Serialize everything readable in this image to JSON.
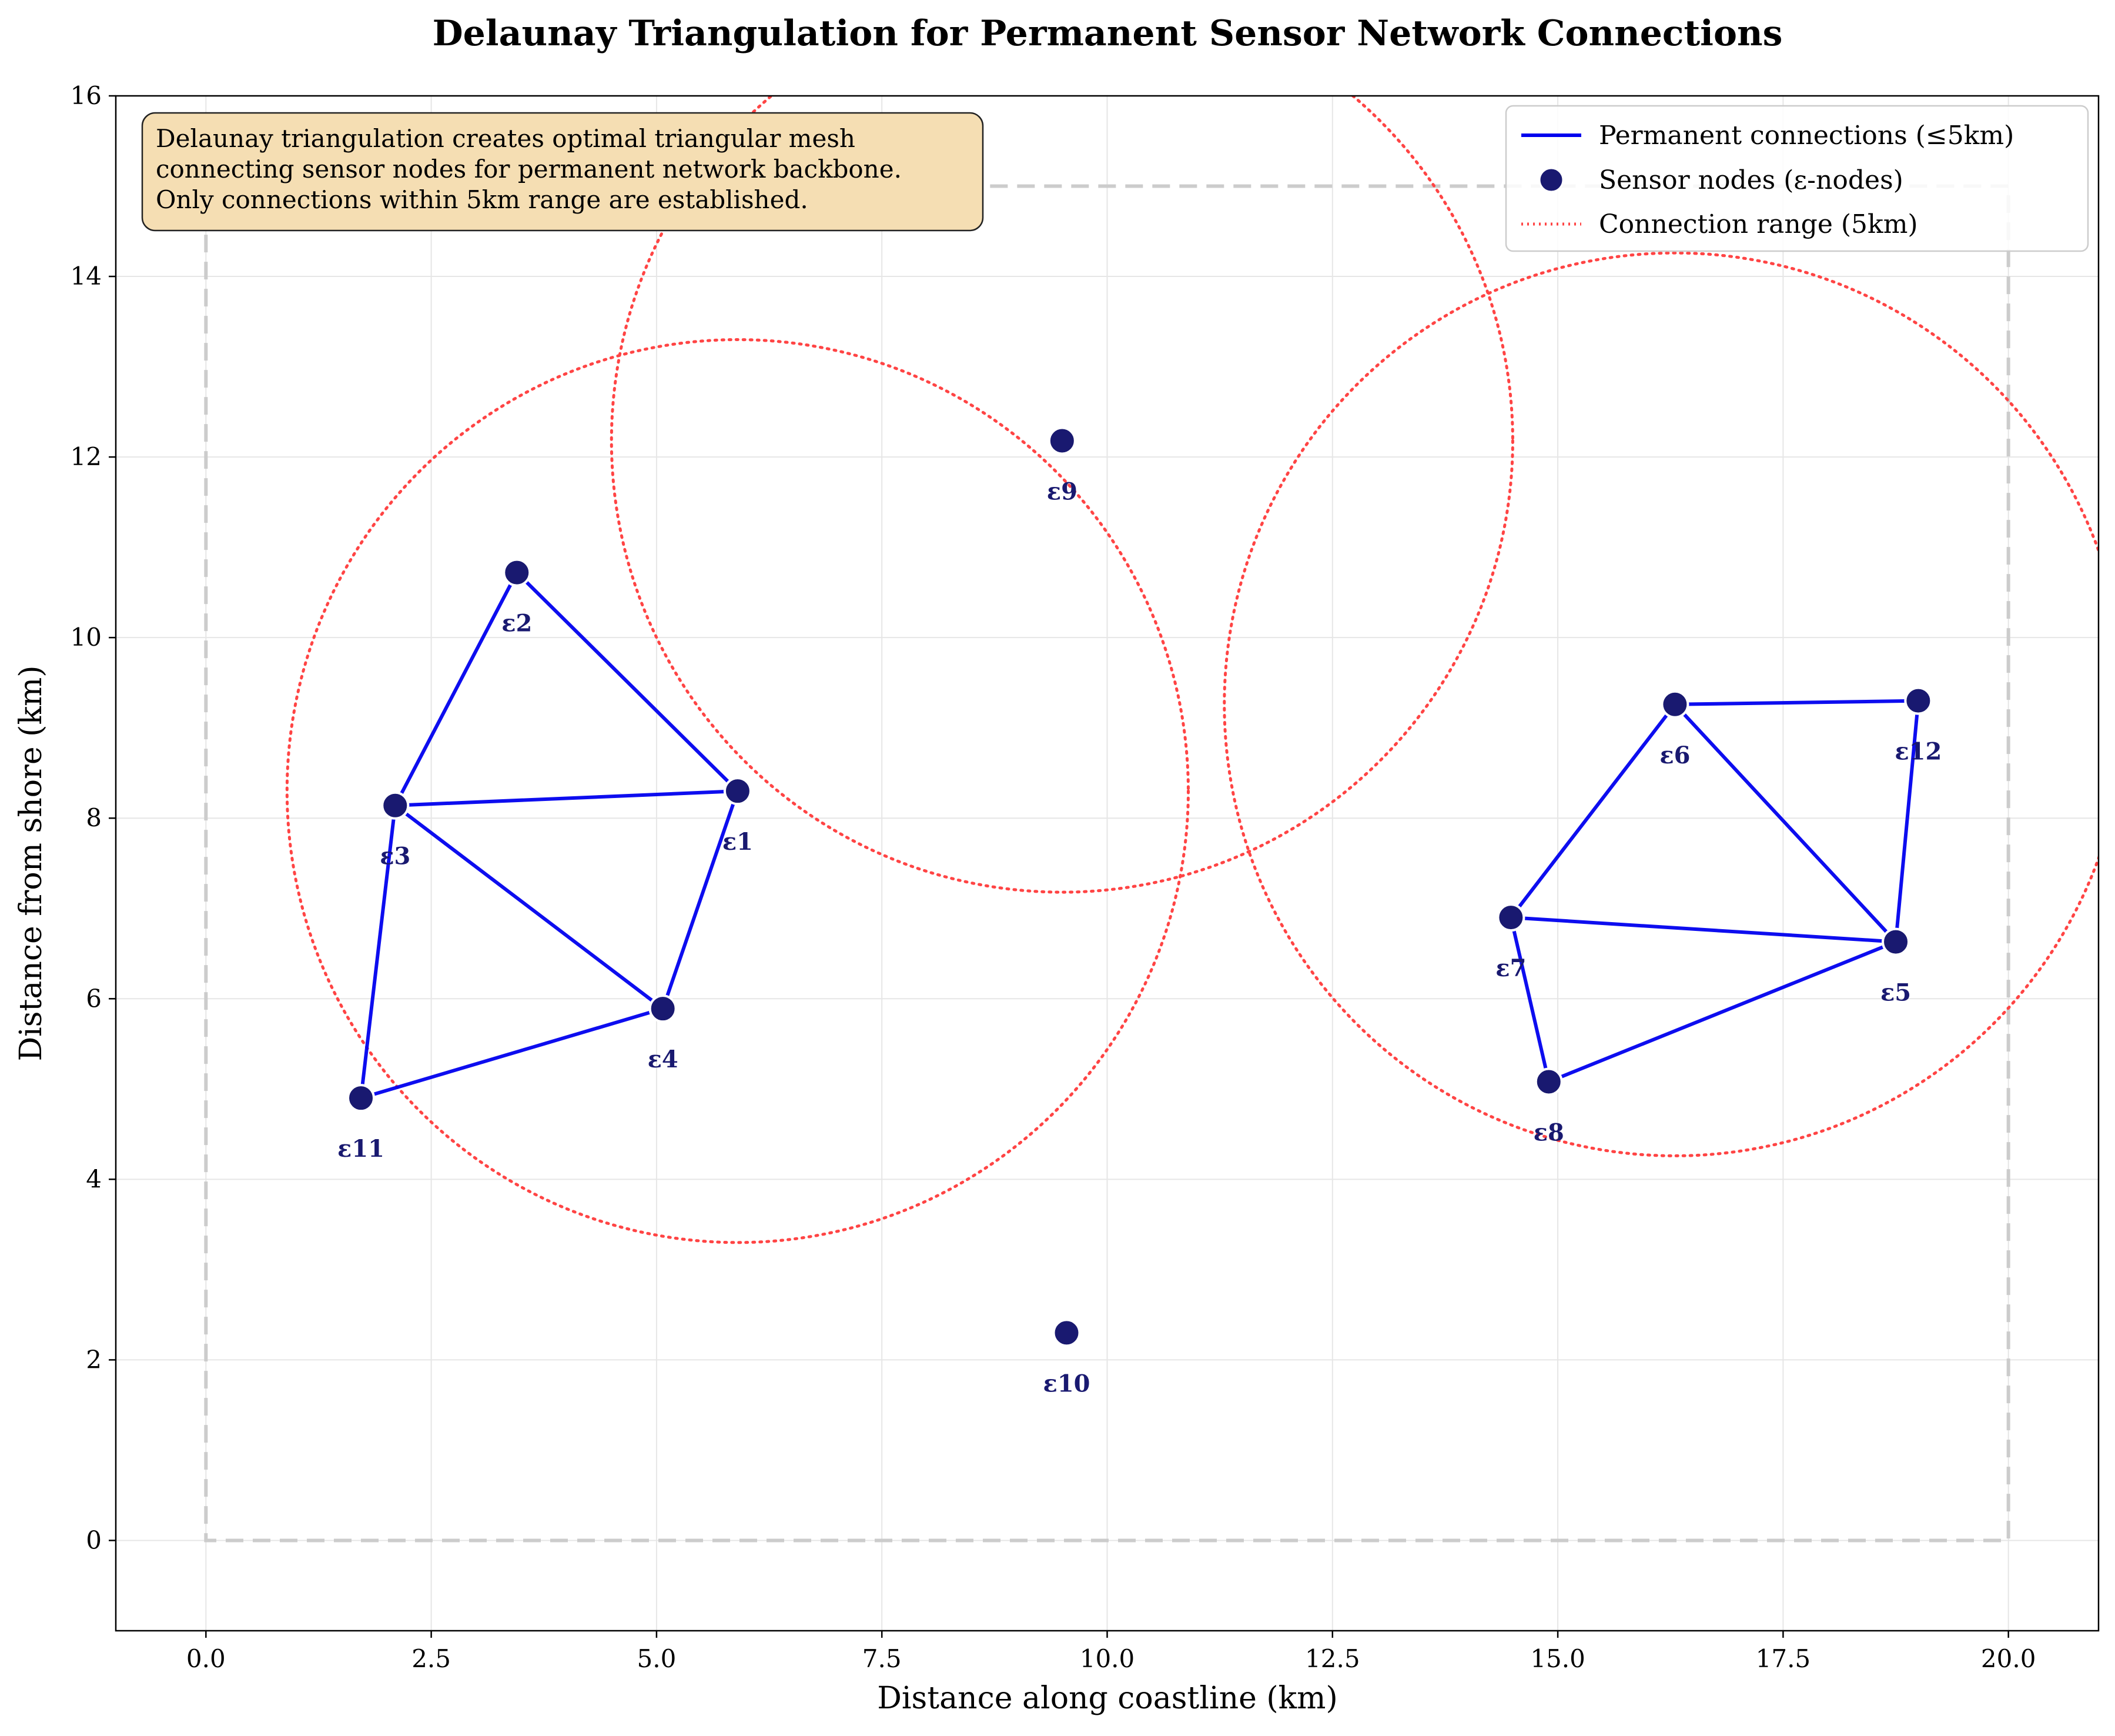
{
  "chart_data": {
    "type": "scatter",
    "title": "Delaunay Triangulation for Permanent Sensor Network Connections",
    "xlabel": "Distance along coastline (km)",
    "ylabel": "Distance from shore (km)",
    "xlim": [
      -1,
      21
    ],
    "ylim": [
      -1,
      16
    ],
    "x_ticks": [
      0,
      2.5,
      5,
      7.5,
      10,
      12.5,
      15,
      17.5,
      20
    ],
    "x_tick_labels": [
      "0.0",
      "2.5",
      "5.0",
      "7.5",
      "10.0",
      "12.5",
      "15.0",
      "17.5",
      "20.0"
    ],
    "y_ticks": [
      0,
      2,
      4,
      6,
      8,
      10,
      12,
      14,
      16
    ],
    "y_tick_labels": [
      "0",
      "2",
      "4",
      "6",
      "8",
      "10",
      "12",
      "14",
      "16"
    ],
    "grid": true,
    "legend_position": "top-right",
    "legend": [
      {
        "label": "Permanent connections (≤5km)",
        "style": "line",
        "color": "#0000ee"
      },
      {
        "label": "Sensor nodes (ε-nodes)",
        "style": "marker",
        "color": "#191970"
      },
      {
        "label": "Connection range (5km)",
        "style": "dotted",
        "color": "#ff4444"
      }
    ],
    "annotation": {
      "lines": [
        "Delaunay triangulation creates optimal triangular mesh",
        "connecting sensor nodes for permanent network backbone.",
        "Only connections within 5km range are established."
      ],
      "position": "top-left",
      "box_color": "#f5deb3"
    },
    "boundary": {
      "x": [
        0,
        20
      ],
      "y": [
        0,
        15
      ],
      "color": "#cccccc",
      "style": "dashed"
    },
    "nodes": [
      {
        "id": "ε1",
        "x": 5.9,
        "y": 8.3
      },
      {
        "id": "ε2",
        "x": 3.45,
        "y": 10.72
      },
      {
        "id": "ε3",
        "x": 2.1,
        "y": 8.14
      },
      {
        "id": "ε4",
        "x": 5.07,
        "y": 5.89
      },
      {
        "id": "ε5",
        "x": 18.75,
        "y": 6.63
      },
      {
        "id": "ε6",
        "x": 16.3,
        "y": 9.26
      },
      {
        "id": "ε7",
        "x": 14.48,
        "y": 6.9
      },
      {
        "id": "ε8",
        "x": 14.9,
        "y": 5.08
      },
      {
        "id": "ε9",
        "x": 9.5,
        "y": 12.18
      },
      {
        "id": "ε10",
        "x": 9.55,
        "y": 2.3
      },
      {
        "id": "ε11",
        "x": 1.72,
        "y": 4.9
      },
      {
        "id": "ε12",
        "x": 19.0,
        "y": 9.3
      }
    ],
    "edges": [
      [
        "ε2",
        "ε1"
      ],
      [
        "ε2",
        "ε3"
      ],
      [
        "ε3",
        "ε1"
      ],
      [
        "ε3",
        "ε4"
      ],
      [
        "ε1",
        "ε4"
      ],
      [
        "ε3",
        "ε11"
      ],
      [
        "ε11",
        "ε4"
      ],
      [
        "ε6",
        "ε12"
      ],
      [
        "ε6",
        "ε7"
      ],
      [
        "ε6",
        "ε5"
      ],
      [
        "ε12",
        "ε5"
      ],
      [
        "ε7",
        "ε5"
      ],
      [
        "ε7",
        "ε8"
      ],
      [
        "ε8",
        "ε5"
      ]
    ],
    "range_circles": [
      {
        "cx": 5.9,
        "cy": 8.3,
        "r": 5
      },
      {
        "cx": 9.5,
        "cy": 12.18,
        "r": 5
      },
      {
        "cx": 16.3,
        "cy": 9.26,
        "r": 5
      }
    ],
    "colors": {
      "edge": "#0000ee",
      "node": "#191970",
      "circle": "#ff4444",
      "grid": "#e6e6e6"
    }
  }
}
